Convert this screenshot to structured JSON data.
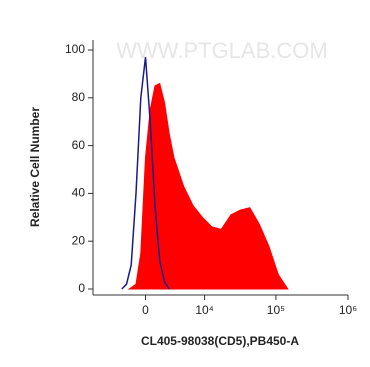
{
  "chart_data": {
    "type": "area",
    "watermark": "WWW.PTGLAB.COM",
    "x_label": "CL405-98038(CD5),PB450-A",
    "y_label": "Relative Cell Number",
    "xscale": "asinh",
    "xlim": [
      -8000,
      1000000
    ],
    "xticks": [
      0,
      {
        "value": 10000,
        "label": "10⁴"
      },
      {
        "value": 100000,
        "label": "10⁵"
      },
      {
        "value": 1000000,
        "label": "10⁶"
      }
    ],
    "ylim": [
      0,
      100
    ],
    "yticks": [
      0,
      20,
      40,
      60,
      80,
      100
    ],
    "series": [
      {
        "color": "#ff0000",
        "filled": true,
        "x": [
          -1670,
          -955,
          -470,
          0,
          470,
          955,
          1460,
          2000,
          2580,
          3220,
          4770,
          6720,
          9300,
          12700,
          17300,
          23600,
          32000,
          43400,
          58900,
          79700,
          108000,
          146000
        ],
        "values": [
          0,
          2,
          15,
          55,
          75,
          85,
          86,
          78,
          65,
          55,
          43,
          35,
          30,
          26,
          25,
          31,
          33,
          34,
          27,
          18,
          6,
          0
        ]
      },
      {
        "color": "#1a1a8c",
        "filled": false,
        "x": [
          -2580,
          -2000,
          -1460,
          -955,
          -470,
          0,
          470,
          955,
          1460,
          2000,
          2580
        ],
        "values": [
          0,
          2,
          10,
          40,
          80,
          97,
          70,
          35,
          12,
          3,
          0
        ]
      }
    ]
  }
}
